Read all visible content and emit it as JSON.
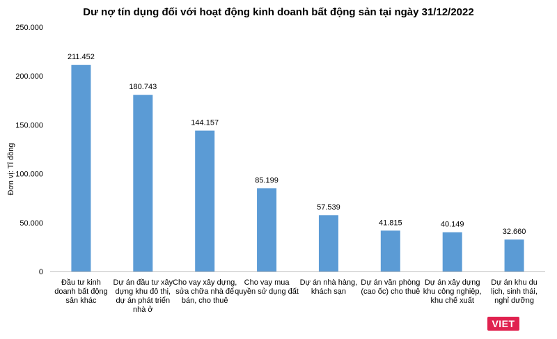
{
  "chart_data": {
    "type": "bar",
    "title": "Dư nợ tín dụng đối với hoạt động kinh doanh bất động sản tại ngày 31/12/2022",
    "ylabel": "Đơn vị: Tỉ đồng",
    "xlabel": "",
    "ylim": [
      0,
      250000
    ],
    "yticks": [
      "0",
      "50.000",
      "100.000",
      "150.000",
      "200.000",
      "250.000"
    ],
    "ytick_values": [
      0,
      50000,
      100000,
      150000,
      200000,
      250000
    ],
    "grid": false,
    "bar_color": "#5b9bd5",
    "categories": [
      [
        "Đầu tư kinh",
        "doanh bất động",
        "sản khác"
      ],
      [
        "Dự án đầu tư xây",
        "dựng khu đô thị,",
        "dự án phát triển",
        "nhà ở"
      ],
      [
        "Cho vay xây dựng,",
        "sửa chữa nhà để",
        "bán, cho thuê"
      ],
      [
        "Cho vay mua",
        "quyền sử dụng đất"
      ],
      [
        "Dự án nhà hàng,",
        "khách sạn"
      ],
      [
        "Dự án văn phòng",
        "(cao ốc) cho thuê"
      ],
      [
        "Dự án xây dựng",
        "khu công nghiệp,",
        "khu chế xuất"
      ],
      [
        "Dự án khu du",
        "lịch, sinh thái,",
        "nghỉ dưỡng"
      ]
    ],
    "values": [
      211452,
      180743,
      144157,
      85199,
      57539,
      41815,
      40149,
      32660
    ],
    "data_labels": [
      "211.452",
      "180.743",
      "144.157",
      "85.199",
      "57.539",
      "41.815",
      "40.149",
      "32.660"
    ]
  },
  "watermark": "VIET"
}
